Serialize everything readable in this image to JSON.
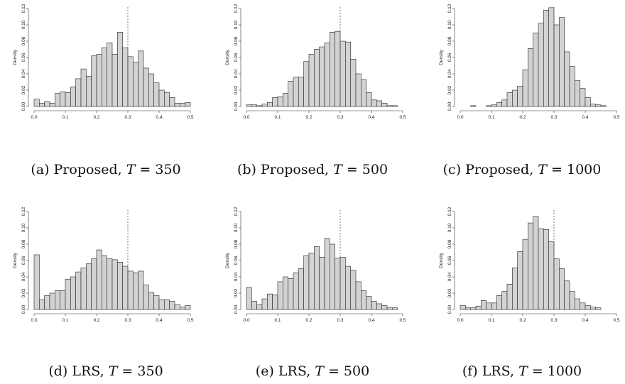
{
  "chart_data": [
    {
      "type": "bar",
      "caption_prefix": "(a) Proposed, ",
      "caption_var": "T",
      "caption_value": " = 350",
      "ylabel": "Density",
      "xlim": [
        0,
        0.5
      ],
      "ylim": [
        0,
        0.12
      ],
      "xticks": [
        "0.0",
        "0.1",
        "0.2",
        "0.3",
        "0.4",
        "0.5"
      ],
      "yticks": [
        "0.00",
        "0.02",
        "0.04",
        "0.06",
        "0.08",
        "0.10",
        "0.12"
      ],
      "bin_width": 0.016667,
      "values": [
        0.009,
        0.004,
        0.006,
        0.004,
        0.016,
        0.018,
        0.017,
        0.024,
        0.034,
        0.046,
        0.037,
        0.062,
        0.064,
        0.072,
        0.078,
        0.064,
        0.091,
        0.072,
        0.061,
        0.054,
        0.068,
        0.047,
        0.04,
        0.029,
        0.02,
        0.017,
        0.011,
        0.004,
        0.004,
        0.005
      ],
      "reference_line_x": 0.3
    },
    {
      "type": "bar",
      "caption_prefix": "(b) Proposed, ",
      "caption_var": "T",
      "caption_value": " = 500",
      "ylabel": "Density",
      "xlim": [
        0,
        0.5
      ],
      "ylim": [
        0,
        0.12
      ],
      "xticks": [
        "0.0",
        "0.1",
        "0.2",
        "0.3",
        "0.4",
        "0.5"
      ],
      "yticks": [
        "0.00",
        "0.02",
        "0.04",
        "0.06",
        "0.08",
        "0.10",
        "0.12"
      ],
      "bin_width": 0.016667,
      "values": [
        0.002,
        0.002,
        0.001,
        0.003,
        0.005,
        0.011,
        0.012,
        0.016,
        0.031,
        0.036,
        0.036,
        0.055,
        0.064,
        0.07,
        0.073,
        0.078,
        0.091,
        0.092,
        0.08,
        0.079,
        0.058,
        0.04,
        0.033,
        0.017,
        0.008,
        0.007,
        0.004,
        0.001,
        0.001,
        0.0
      ],
      "reference_line_x": 0.3
    },
    {
      "type": "bar",
      "caption_prefix": "(c) Proposed, ",
      "caption_var": "T",
      "caption_value": " = 1000",
      "ylabel": "Density",
      "xlim": [
        0,
        0.5
      ],
      "ylim": [
        0,
        0.12
      ],
      "xticks": [
        "0.0",
        "0.1",
        "0.2",
        "0.3",
        "0.4",
        "0.5"
      ],
      "yticks": [
        "0.00",
        "0.02",
        "0.04",
        "0.06",
        "0.08",
        "0.10",
        "0.12"
      ],
      "bin_width": 0.016667,
      "values": [
        0.0,
        0.0,
        0.001,
        0.0,
        0.0,
        0.001,
        0.002,
        0.005,
        0.008,
        0.017,
        0.02,
        0.025,
        0.045,
        0.071,
        0.09,
        0.102,
        0.118,
        0.121,
        0.1,
        0.109,
        0.067,
        0.049,
        0.032,
        0.022,
        0.011,
        0.003,
        0.002,
        0.001,
        0.0,
        0.0
      ],
      "reference_line_x": 0.3
    },
    {
      "type": "bar",
      "caption_prefix": "(d) LRS, ",
      "caption_var": "T",
      "caption_value": " = 350",
      "ylabel": "Density",
      "xlim": [
        0,
        0.5
      ],
      "ylim": [
        0,
        0.12
      ],
      "xticks": [
        "0.0",
        "0.1",
        "0.2",
        "0.3",
        "0.4",
        "0.5"
      ],
      "yticks": [
        "0.00",
        "0.02",
        "0.04",
        "0.06",
        "0.08",
        "0.10",
        "0.12"
      ],
      "bin_width": 0.016667,
      "values": [
        0.067,
        0.012,
        0.017,
        0.02,
        0.023,
        0.023,
        0.037,
        0.04,
        0.046,
        0.051,
        0.056,
        0.062,
        0.073,
        0.066,
        0.062,
        0.061,
        0.058,
        0.053,
        0.047,
        0.045,
        0.047,
        0.03,
        0.021,
        0.017,
        0.012,
        0.012,
        0.01,
        0.006,
        0.003,
        0.005
      ],
      "reference_line_x": 0.3
    },
    {
      "type": "bar",
      "caption_prefix": "(e) LRS, ",
      "caption_var": "T",
      "caption_value": " = 500",
      "ylabel": "Density",
      "xlim": [
        0,
        0.5
      ],
      "ylim": [
        0,
        0.12
      ],
      "xticks": [
        "0.0",
        "0.1",
        "0.2",
        "0.3",
        "0.4",
        "0.5"
      ],
      "yticks": [
        "0.00",
        "0.02",
        "0.04",
        "0.06",
        "0.08",
        "0.10",
        "0.12"
      ],
      "bin_width": 0.016667,
      "values": [
        0.027,
        0.01,
        0.006,
        0.013,
        0.019,
        0.018,
        0.034,
        0.04,
        0.038,
        0.045,
        0.05,
        0.066,
        0.069,
        0.077,
        0.064,
        0.087,
        0.08,
        0.063,
        0.064,
        0.053,
        0.048,
        0.034,
        0.023,
        0.016,
        0.01,
        0.007,
        0.005,
        0.002,
        0.002,
        0.0
      ],
      "reference_line_x": 0.3
    },
    {
      "type": "bar",
      "caption_prefix": "(f) LRS, ",
      "caption_var": "T",
      "caption_value": " = 1000",
      "ylabel": "Density",
      "xlim": [
        0,
        0.5
      ],
      "ylim": [
        0,
        0.12
      ],
      "xticks": [
        "0.0",
        "0.1",
        "0.2",
        "0.3",
        "0.4",
        "0.5"
      ],
      "yticks": [
        "0.00",
        "0.02",
        "0.04",
        "0.06",
        "0.08",
        "0.10",
        "0.12"
      ],
      "bin_width": 0.016667,
      "values": [
        0.005,
        0.002,
        0.002,
        0.004,
        0.011,
        0.008,
        0.008,
        0.017,
        0.022,
        0.031,
        0.051,
        0.071,
        0.086,
        0.106,
        0.114,
        0.099,
        0.098,
        0.083,
        0.062,
        0.05,
        0.035,
        0.022,
        0.013,
        0.008,
        0.005,
        0.003,
        0.002,
        0.0,
        0.0,
        0.0
      ],
      "reference_line_x": 0.3
    }
  ]
}
